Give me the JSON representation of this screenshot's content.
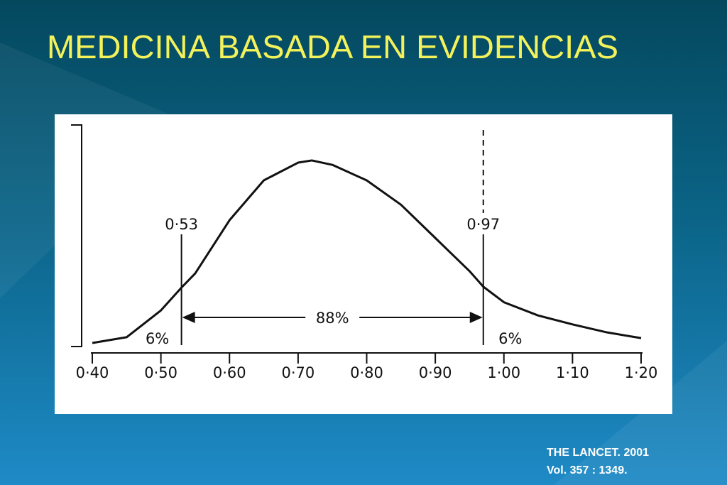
{
  "title": "MEDICINA BASADA EN EVIDENCIAS",
  "chart_data": {
    "type": "line",
    "x": [
      0.4,
      0.45,
      0.5,
      0.53,
      0.55,
      0.6,
      0.65,
      0.7,
      0.72,
      0.75,
      0.8,
      0.85,
      0.9,
      0.95,
      0.97,
      1.0,
      1.05,
      1.1,
      1.15,
      1.2
    ],
    "series": [
      {
        "color": "#111111",
        "values": [
          1.6,
          4.2,
          16.3,
          26.6,
          33,
          57,
          75,
          83,
          84,
          82,
          75,
          64,
          49,
          34,
          27,
          20,
          14,
          10,
          6.4,
          3.8
        ]
      }
    ],
    "xlim": [
      0.4,
      1.2
    ],
    "xticks": [
      {
        "value": 0.4,
        "label": "0·40"
      },
      {
        "value": 0.5,
        "label": "0·50"
      },
      {
        "value": 0.6,
        "label": "0·60"
      },
      {
        "value": 0.7,
        "label": "0·70"
      },
      {
        "value": 0.8,
        "label": "0·80"
      },
      {
        "value": 0.9,
        "label": "0·90"
      },
      {
        "value": 1.0,
        "label": "1·00"
      },
      {
        "value": 1.1,
        "label": "1·10"
      },
      {
        "value": 1.2,
        "label": "1·20"
      }
    ],
    "ylim": [
      0,
      100
    ],
    "markers": [
      {
        "value": 0.53,
        "label": "0·53"
      },
      {
        "value": 0.97,
        "label": "0·97"
      }
    ],
    "interval_label": "88%",
    "tail_labels": [
      "6%",
      "6%"
    ]
  },
  "citation": [
    "THE LANCET. 2001",
    "Vol. 357 : 1349."
  ]
}
